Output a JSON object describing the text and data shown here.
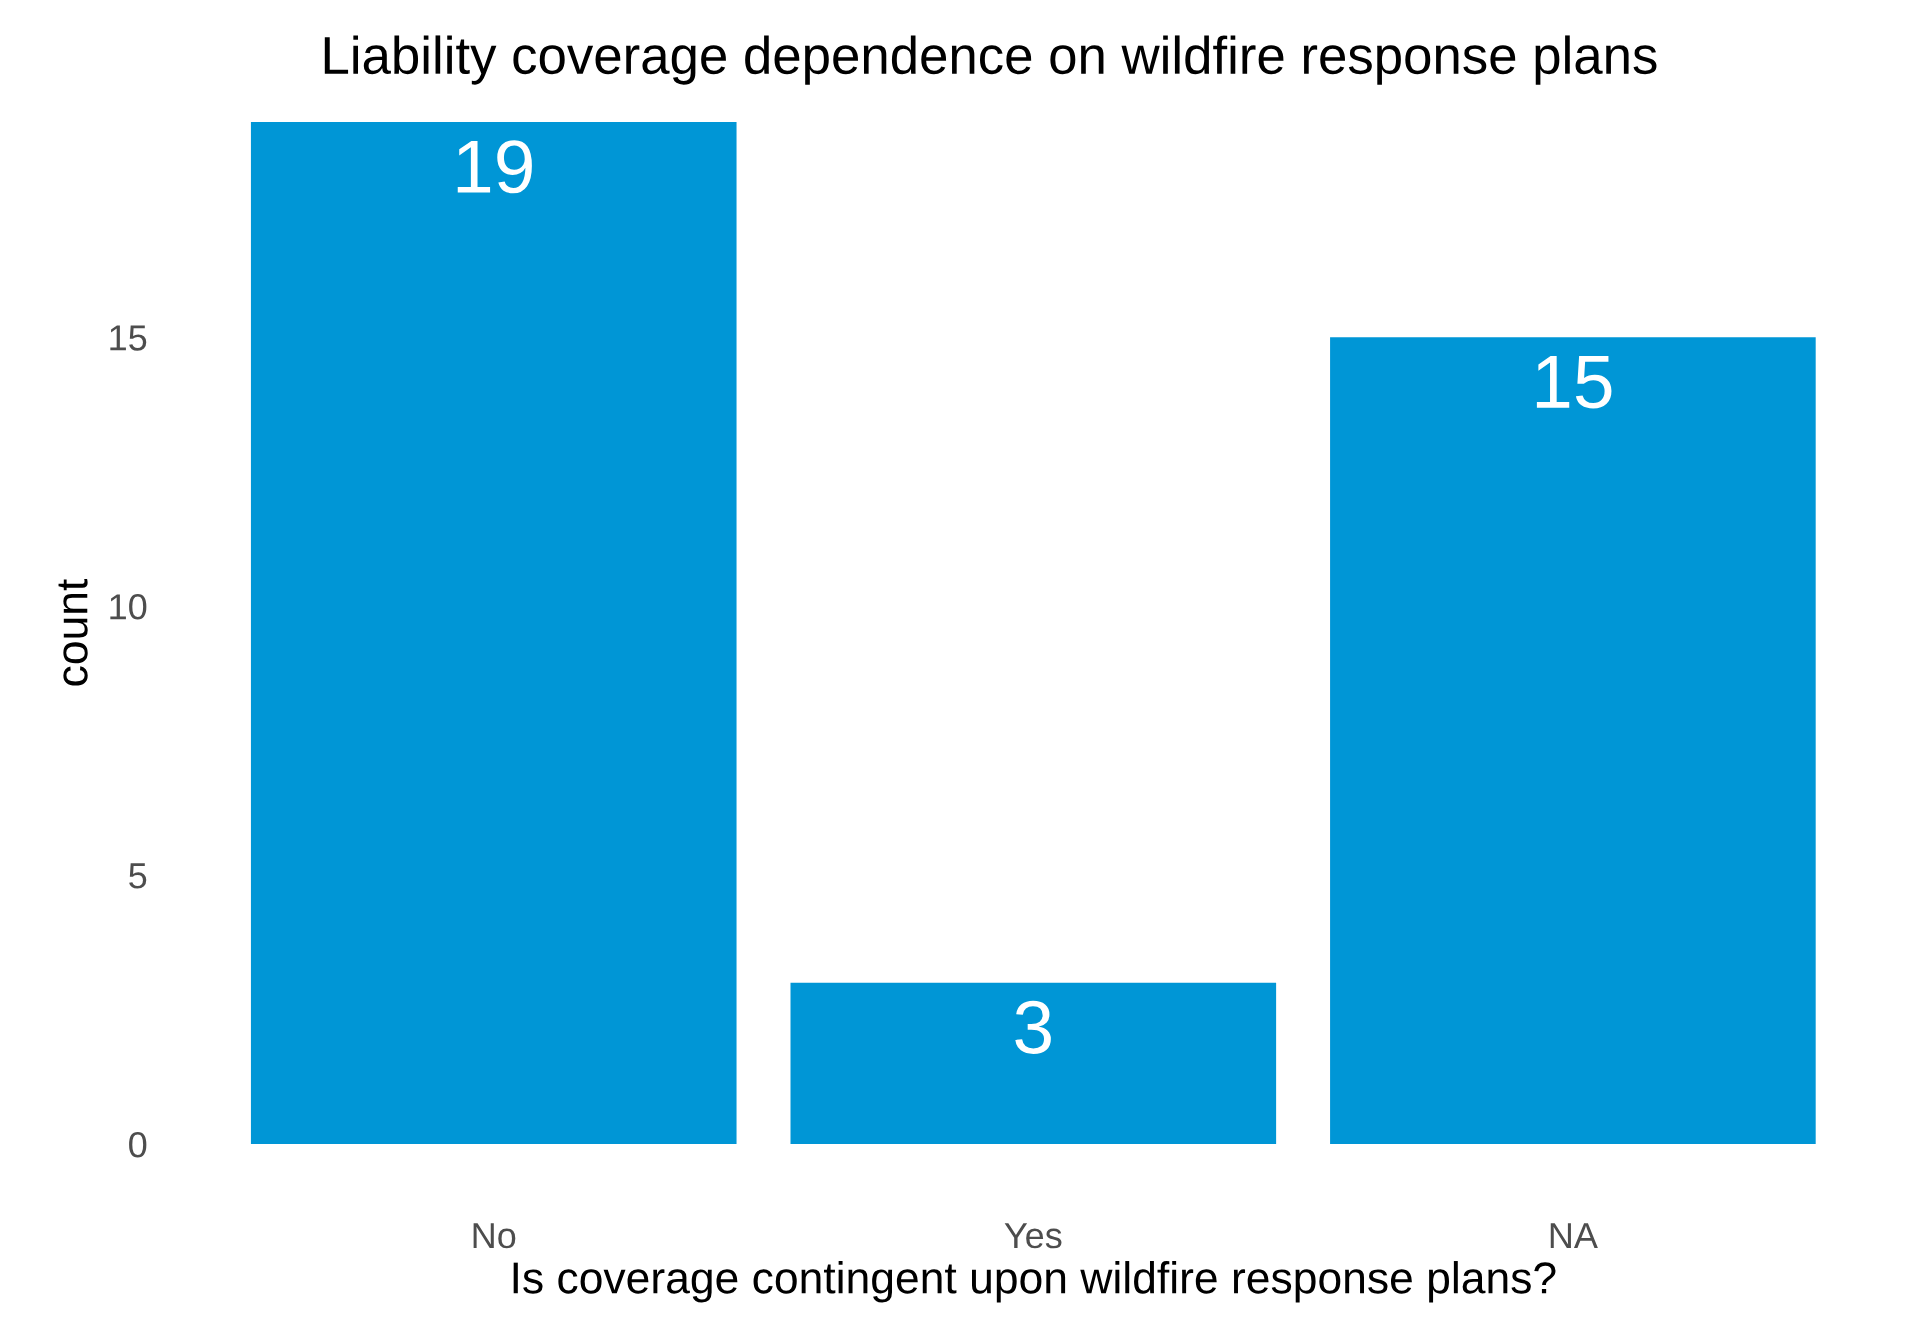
{
  "chart_data": {
    "type": "bar",
    "title": "Liability coverage dependence on wildfire response plans",
    "xlabel": "Is coverage contingent upon wildfire response plans?",
    "ylabel": "count",
    "categories": [
      "No",
      "Yes",
      "NA"
    ],
    "values": [
      19,
      3,
      15
    ],
    "color": "#0096d6",
    "ylim": [
      0,
      19
    ],
    "yticks": [
      0,
      5,
      10,
      15
    ],
    "grid": false,
    "data_labels": true
  }
}
